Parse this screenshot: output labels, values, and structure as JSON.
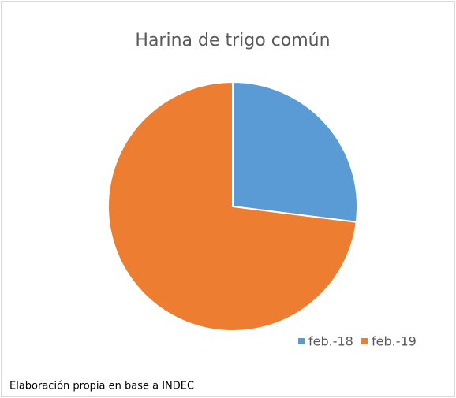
{
  "chart_data": {
    "type": "pie",
    "title": "Harina de trigo común",
    "categories": [
      "feb.-18",
      "feb.-19"
    ],
    "values": [
      27,
      73
    ],
    "colors": [
      "#5b9bd5",
      "#ed7d31"
    ],
    "legend": "bottom-right",
    "note": "Elaboración propia en base a INDEC"
  }
}
